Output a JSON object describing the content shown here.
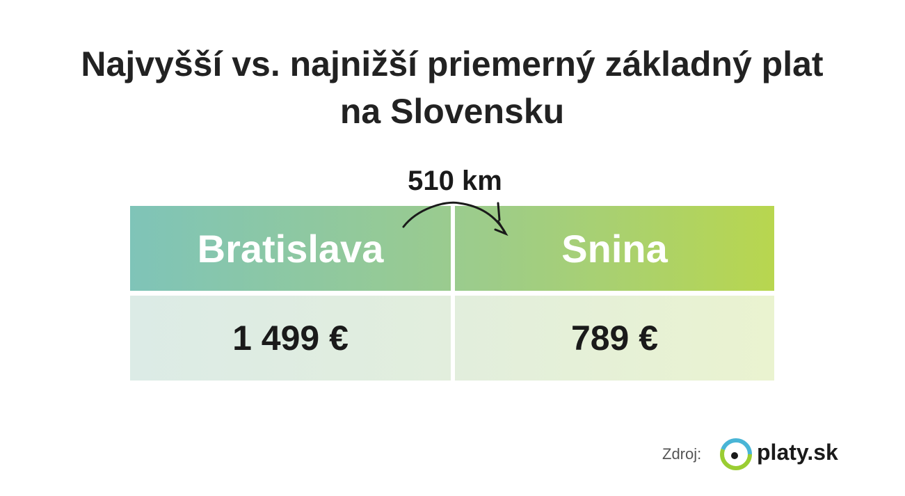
{
  "title": "Najvyšší vs. najnižší priemerný základný plat na Slovensku",
  "distance": "510 km",
  "table": {
    "header": [
      "Bratislava",
      "Snina"
    ],
    "rows": [
      [
        "1 499 €",
        "789 €"
      ]
    ]
  },
  "source": {
    "label": "Zdroj:",
    "logo": "platy.sk"
  }
}
